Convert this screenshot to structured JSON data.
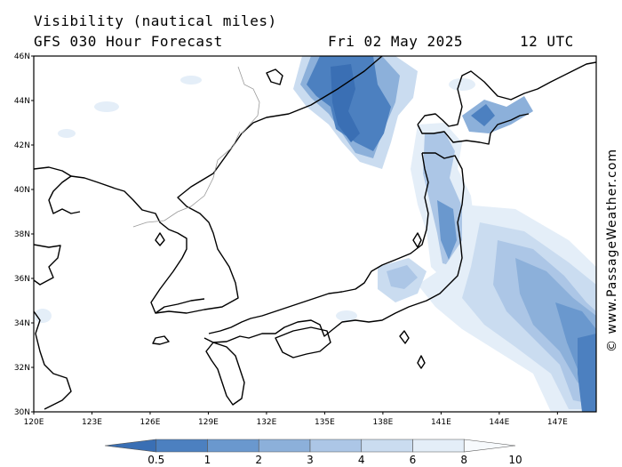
{
  "header": {
    "title_line1": "Visibility (nautical miles)",
    "title_line2": "GFS 030 Hour Forecast",
    "date": "Fri 02 May 2025",
    "time": "12 UTC"
  },
  "copyright": "© www.PassageWeather.com",
  "axes": {
    "lat_labels": [
      "46N",
      "44N",
      "42N",
      "40N",
      "38N",
      "36N",
      "34N",
      "32N",
      "30N"
    ],
    "lon_labels": [
      "120E",
      "123E",
      "126E",
      "129E",
      "132E",
      "135E",
      "138E",
      "141E",
      "144E",
      "147E"
    ],
    "lat_range": [
      30,
      46
    ],
    "lon_range": [
      120,
      149
    ]
  },
  "colorbar": {
    "labels": [
      "0.5",
      "1",
      "2",
      "3",
      "4",
      "6",
      "8",
      "10"
    ],
    "colors": [
      "#3a6fb4",
      "#4c80c0",
      "#6a98ce",
      "#8cb0da",
      "#acc6e6",
      "#cadcf0",
      "#e4eef8",
      "#f7fafd"
    ]
  }
}
